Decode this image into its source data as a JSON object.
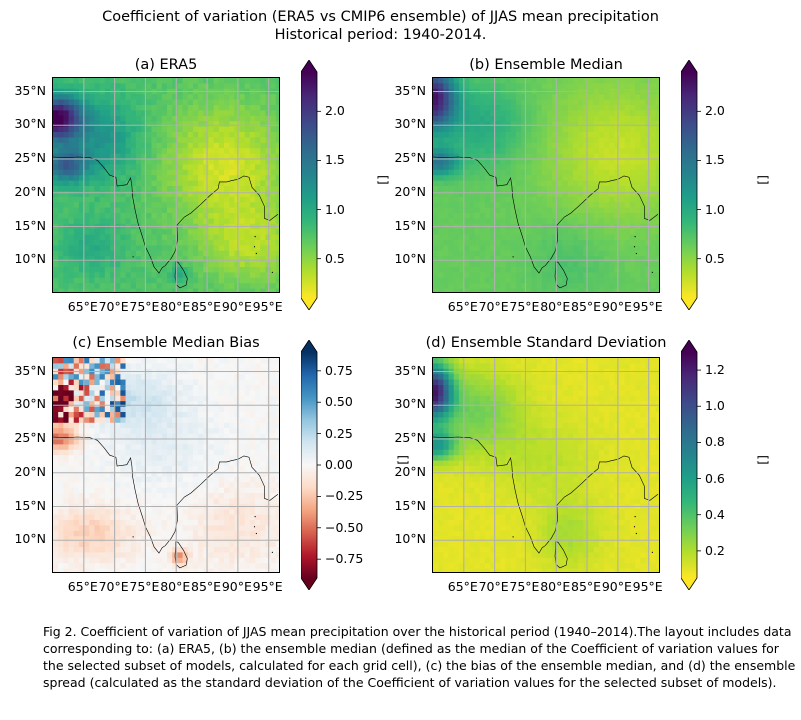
{
  "title": {
    "line1": "Coefficient of variation (ERA5 vs CMIP6 ensemble) of JJAS mean precipitation",
    "line2": "Historical period: 1940-2014."
  },
  "caption": "Fig 2. Coefficient of variation of JJAS mean precipitation over the historical period (1940–2014).The layout includes data corresponding to: (a) ERA5, (b) the ensemble median (defined as the median of the Coefficient of variation values for the selected subset of models, calculated for each grid cell), (c) the bias of the ensemble median, and (d) the ensemble spread (calculated as the standard deviation of the Coefficient of variation values for the selected subset of models).",
  "colors": {
    "viridis_r": [
      "#fde725",
      "#b5de2b",
      "#6ece58",
      "#35b779",
      "#1f9e89",
      "#26828e",
      "#31688e",
      "#3e4989",
      "#482878",
      "#440154"
    ],
    "rdbu": [
      "#67001f",
      "#b2182b",
      "#d6604d",
      "#f4a582",
      "#fddbc7",
      "#f7f7f7",
      "#d1e5f0",
      "#92c5de",
      "#4393c3",
      "#2166ac",
      "#053061"
    ],
    "grid": "#b0b0b0",
    "coast": "#000000"
  },
  "chart_data": [
    {
      "type": "heatmap",
      "panel": "a",
      "title": "(a) ERA5",
      "lon_ticks": [
        "65°E",
        "70°E",
        "75°E",
        "80°E",
        "85°E",
        "90°E",
        "95°E"
      ],
      "lat_ticks": [
        "35°N",
        "30°N",
        "25°N",
        "20°N",
        "15°N",
        "10°N"
      ],
      "lon_range": [
        60,
        97
      ],
      "lat_range": [
        5,
        37
      ],
      "colormap": "viridis_r",
      "colorbar": {
        "range": [
          0.1,
          2.4
        ],
        "ticks": [
          "2.0",
          "1.5",
          "1.0",
          "0.5"
        ],
        "tick_values": [
          2.0,
          1.5,
          1.0,
          0.5
        ],
        "unit": "[]",
        "extend": "both"
      }
    },
    {
      "type": "heatmap",
      "panel": "b",
      "title": "(b) Ensemble Median",
      "lon_ticks": [
        "65°E",
        "70°E",
        "75°E",
        "80°E",
        "85°E",
        "90°E",
        "95°E"
      ],
      "lat_ticks": [
        "35°N",
        "30°N",
        "25°N",
        "20°N",
        "15°N",
        "10°N"
      ],
      "lon_range": [
        60,
        97
      ],
      "lat_range": [
        5,
        37
      ],
      "colormap": "viridis_r",
      "colorbar": {
        "range": [
          0.1,
          2.4
        ],
        "ticks": [
          "2.0",
          "1.5",
          "1.0",
          "0.5"
        ],
        "tick_values": [
          2.0,
          1.5,
          1.0,
          0.5
        ],
        "unit": "[]",
        "extend": "both"
      }
    },
    {
      "type": "heatmap",
      "panel": "c",
      "title": "(c) Ensemble Median Bias",
      "lon_ticks": [
        "65°E",
        "70°E",
        "75°E",
        "80°E",
        "85°E",
        "90°E",
        "95°E"
      ],
      "lat_ticks": [
        "35°N",
        "30°N",
        "25°N",
        "20°N",
        "15°N",
        "10°N"
      ],
      "lon_range": [
        60,
        97
      ],
      "lat_range": [
        5,
        37
      ],
      "colormap": "rdbu",
      "colorbar": {
        "range": [
          -0.9,
          0.9
        ],
        "ticks": [
          "0.75",
          "0.50",
          "0.25",
          "0.00",
          "−0.25",
          "−0.50",
          "−0.75"
        ],
        "tick_values": [
          0.75,
          0.5,
          0.25,
          0.0,
          -0.25,
          -0.5,
          -0.75
        ],
        "unit": "[]",
        "extend": "both"
      }
    },
    {
      "type": "heatmap",
      "panel": "d",
      "title": "(d) Ensemble Standard Deviation",
      "lon_ticks": [
        "65°E",
        "70°E",
        "75°E",
        "80°E",
        "85°E",
        "90°E",
        "95°E"
      ],
      "lat_ticks": [
        "35°N",
        "30°N",
        "25°N",
        "20°N",
        "15°N",
        "10°N"
      ],
      "lon_range": [
        60,
        97
      ],
      "lat_range": [
        5,
        37
      ],
      "colormap": "viridis_r",
      "colorbar": {
        "range": [
          0.05,
          1.3
        ],
        "ticks": [
          "1.2",
          "1.0",
          "0.8",
          "0.6",
          "0.4",
          "0.2"
        ],
        "tick_values": [
          1.2,
          1.0,
          0.8,
          0.6,
          0.4,
          0.2
        ],
        "unit": "[]",
        "extend": "both"
      }
    }
  ]
}
